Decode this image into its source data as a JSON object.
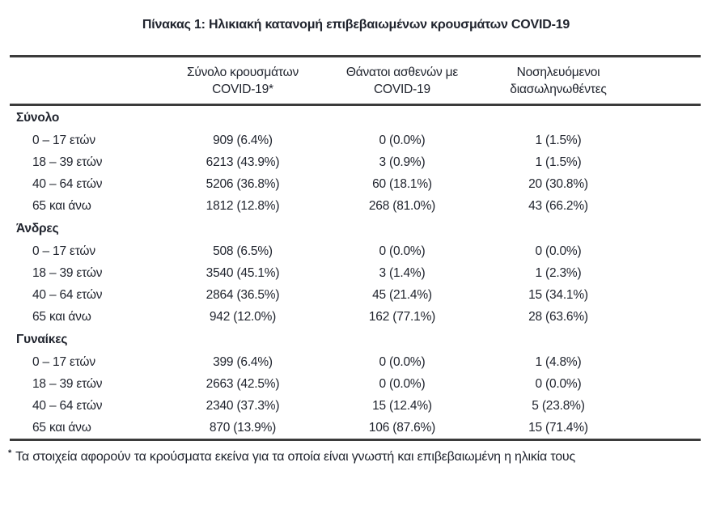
{
  "title": "Πίνακας 1: Ηλικιακή κατανομή επιβεβαιωμένων κρουσμάτων COVID-19",
  "table": {
    "columns": [
      {
        "line1": "Σύνολο κρουσμάτων",
        "line2": "COVID-19*"
      },
      {
        "line1": "Θάνατοι ασθενών με",
        "line2": "COVID-19"
      },
      {
        "line1": "Νοσηλευόμενοι",
        "line2": "διασωληνωθέντες"
      }
    ],
    "sections": [
      {
        "label": "Σύνολο",
        "rows": [
          {
            "age": "0 – 17 ετών",
            "cases": "909 (6.4%)",
            "deaths": "0 (0.0%)",
            "intubated": "1 (1.5%)"
          },
          {
            "age": "18 – 39 ετών",
            "cases": "6213 (43.9%)",
            "deaths": "3 (0.9%)",
            "intubated": "1 (1.5%)"
          },
          {
            "age": "40 – 64 ετών",
            "cases": "5206 (36.8%)",
            "deaths": "60 (18.1%)",
            "intubated": "20 (30.8%)"
          },
          {
            "age": "65 και άνω",
            "cases": "1812 (12.8%)",
            "deaths": "268 (81.0%)",
            "intubated": "43 (66.2%)"
          }
        ]
      },
      {
        "label": "Άνδρες",
        "rows": [
          {
            "age": "0 – 17 ετών",
            "cases": "508 (6.5%)",
            "deaths": "0 (0.0%)",
            "intubated": "0 (0.0%)"
          },
          {
            "age": "18 – 39 ετών",
            "cases": "3540 (45.1%)",
            "deaths": "3 (1.4%)",
            "intubated": "1 (2.3%)"
          },
          {
            "age": "40 – 64 ετών",
            "cases": "2864 (36.5%)",
            "deaths": "45 (21.4%)",
            "intubated": "15 (34.1%)"
          },
          {
            "age": "65 και άνω",
            "cases": "942 (12.0%)",
            "deaths": "162 (77.1%)",
            "intubated": "28 (63.6%)"
          }
        ]
      },
      {
        "label": "Γυναίκες",
        "rows": [
          {
            "age": "0 – 17 ετών",
            "cases": "399 (6.4%)",
            "deaths": "0 (0.0%)",
            "intubated": "1 (4.8%)"
          },
          {
            "age": "18 – 39 ετών",
            "cases": "2663 (42.5%)",
            "deaths": "0 (0.0%)",
            "intubated": "0 (0.0%)"
          },
          {
            "age": "40 – 64 ετών",
            "cases": "2340 (37.3%)",
            "deaths": "15 (12.4%)",
            "intubated": "5 (23.8%)"
          },
          {
            "age": "65 και άνω",
            "cases": "870 (13.9%)",
            "deaths": "106 (87.6%)",
            "intubated": "15 (71.4%)"
          }
        ]
      }
    ]
  },
  "footnote": {
    "marker": "*",
    "text": "Τα στοιχεία αφορούν τα κρούσματα εκείνα για τα οποία είναι γνωστή και επιβεβαιωμένη η ηλικία τους"
  },
  "colors": {
    "text": "#20242e",
    "rule": "#3b3b3b",
    "background": "#ffffff"
  }
}
